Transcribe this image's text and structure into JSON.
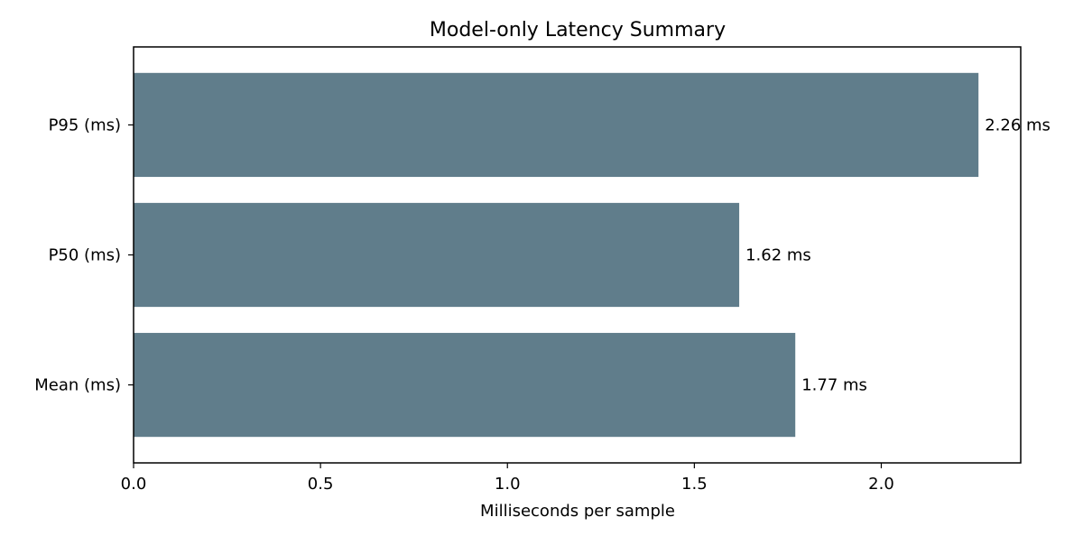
{
  "chart_data": {
    "type": "bar",
    "orientation": "horizontal",
    "title": "Model-only Latency Summary",
    "xlabel": "Milliseconds per sample",
    "ylabel": "",
    "categories": [
      "Mean (ms)",
      "P50 (ms)",
      "P95 (ms)"
    ],
    "values": [
      1.77,
      1.62,
      2.26
    ],
    "data_labels": [
      "1.77 ms",
      "1.62 ms",
      "2.26 ms"
    ],
    "xlim": [
      0,
      2.373
    ],
    "xticks": [
      0.0,
      0.5,
      1.0,
      1.5,
      2.0
    ],
    "xtick_labels": [
      "0.0",
      "0.5",
      "1.0",
      "1.5",
      "2.0"
    ],
    "grid": false,
    "legend": "none",
    "colors": {
      "bar": "#607d8b",
      "axes": "#000000",
      "background": "#ffffff"
    }
  }
}
